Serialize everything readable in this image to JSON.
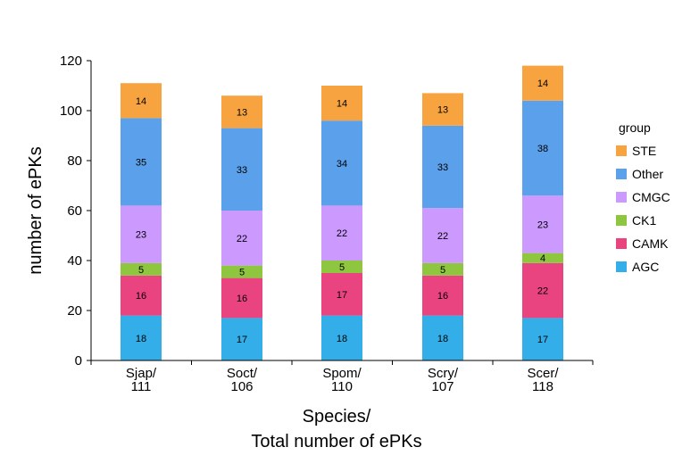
{
  "chart_data": {
    "type": "bar",
    "stacked": true,
    "categories": [
      [
        "Sjap/",
        "111"
      ],
      [
        "Soct/",
        "106"
      ],
      [
        "Spom/",
        "110"
      ],
      [
        "Scry/",
        "107"
      ],
      [
        "Scer/",
        "118"
      ]
    ],
    "series": [
      {
        "name": "AGC",
        "color": "#33aee8",
        "values": [
          18,
          17,
          18,
          18,
          17
        ]
      },
      {
        "name": "CAMK",
        "color": "#ea4480",
        "values": [
          16,
          16,
          17,
          16,
          22
        ]
      },
      {
        "name": "CK1",
        "color": "#8ec63f",
        "values": [
          5,
          5,
          5,
          5,
          4
        ]
      },
      {
        "name": "CMGC",
        "color": "#cc99ff",
        "values": [
          23,
          22,
          22,
          22,
          23
        ]
      },
      {
        "name": "Other",
        "color": "#5aa0eb",
        "values": [
          35,
          33,
          34,
          33,
          38
        ]
      },
      {
        "name": "STE",
        "color": "#f7a440",
        "values": [
          14,
          13,
          14,
          13,
          14
        ]
      }
    ],
    "ylabel": "number of ePKs",
    "xlabel": [
      "Species/",
      "Total number of ePKs"
    ],
    "ylim": [
      0,
      120
    ],
    "yticks": [
      0,
      20,
      40,
      60,
      80,
      100,
      120
    ],
    "grid": false,
    "legend": {
      "title": "group",
      "position": "right",
      "order": [
        "STE",
        "Other",
        "CMGC",
        "CK1",
        "CAMK",
        "AGC"
      ]
    }
  }
}
